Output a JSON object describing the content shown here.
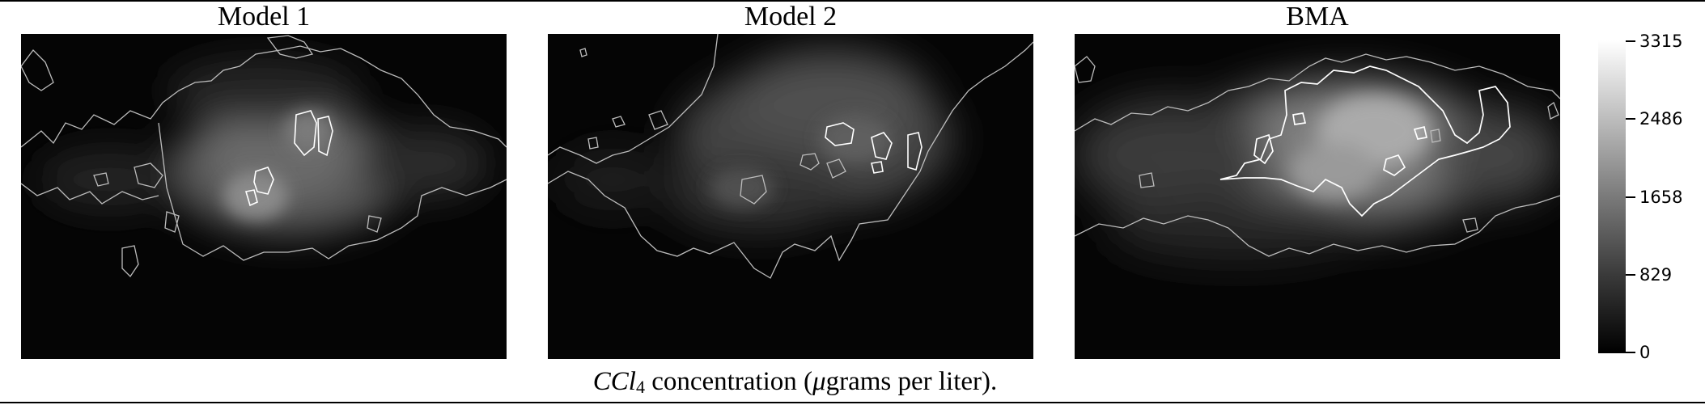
{
  "panels": [
    {
      "title": "Model 1"
    },
    {
      "title": "Model 2"
    },
    {
      "title": "BMA"
    }
  ],
  "colorbar": {
    "ticks": [
      "3315",
      "2486",
      "1658",
      "829",
      "0"
    ],
    "max": 3315,
    "min": 0
  },
  "caption": {
    "chem_main": "CCl",
    "chem_sub": "4",
    "text_1": " concentration (",
    "mu": "μ",
    "text_2": "grams per liter)."
  },
  "colors": {
    "background": "#050505",
    "contour_low": "#bdbdbd",
    "contour_high": "#ffffff"
  }
}
